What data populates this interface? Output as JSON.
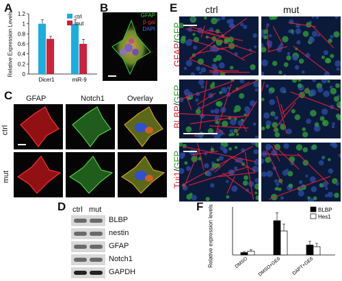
{
  "panelA": {
    "letter": "A",
    "ylabel": "Relative Expression Levels",
    "legend": [
      "ctrl",
      "mut"
    ]
  },
  "panelB": {
    "letter": "B",
    "legend": [
      "GFAP",
      "β-gal",
      "DAPI"
    ]
  },
  "panelC": {
    "letter": "C",
    "columns": [
      "GFAP",
      "Notch1",
      "Overlay"
    ],
    "rows": [
      "ctrl",
      "mut"
    ]
  },
  "panelD": {
    "letter": "D",
    "columns": [
      "ctrl",
      "mut"
    ],
    "bands": [
      "BLBP",
      "nestin",
      "GFAP",
      "Notch1",
      "GAPDH"
    ]
  },
  "panelE": {
    "letter": "E",
    "columns": [
      "ctrl",
      "mut"
    ],
    "rows": [
      {
        "marker": "GFAP",
        "sep": "/",
        "reporter": "GFP"
      },
      {
        "marker": "BLBP",
        "sep": "/",
        "reporter": "GFP"
      },
      {
        "marker": "Tuj1",
        "sep": "/",
        "reporter": "GFP"
      }
    ]
  },
  "panelF": {
    "letter": "F",
    "ylabel": "Relative expression levels",
    "legend": [
      "BLBP",
      "Hes1"
    ]
  },
  "colors": {
    "ctrl_bar": "#1aaee0",
    "mut_bar": "#d0203a",
    "blbp_bar": "#000000",
    "hes1_bar": "#ffffff",
    "gfp_green": "#22a020",
    "marker_red": "#d8202a"
  },
  "chart_data": [
    {
      "type": "bar",
      "categories": [
        "Dicer1",
        "miR-9"
      ],
      "series": [
        {
          "name": "ctrl",
          "values": [
            1.0,
            1.0
          ]
        },
        {
          "name": "mut",
          "values": [
            0.7,
            0.6
          ]
        }
      ],
      "errors": [
        {
          "name": "ctrl",
          "values": [
            0.08,
            0.08
          ]
        },
        {
          "name": "mut",
          "values": [
            0.05,
            0.09
          ]
        }
      ],
      "yticks": [
        "0",
        "0.2",
        "0.4",
        "0.6",
        "0.8",
        "1",
        "1.2"
      ],
      "ylim": [
        0,
        1.2
      ],
      "ylabel": "Relative Expression Levels",
      "legend": "top-right"
    },
    {
      "type": "bar",
      "categories": [
        "DMSO",
        "DMSO+GE6",
        "DAPT+GE6"
      ],
      "series": [
        {
          "name": "BLBP",
          "values": [
            0.7,
            10.0,
            2.9
          ]
        },
        {
          "name": "Hes1",
          "values": [
            1.1,
            7.0,
            2.4
          ]
        }
      ],
      "errors": [
        {
          "name": "BLBP",
          "values": [
            0.3,
            2.3,
            1.1
          ]
        },
        {
          "name": "Hes1",
          "values": [
            0.4,
            2.0,
            1.0
          ]
        }
      ],
      "ylim": [
        0,
        14
      ],
      "ylabel": "Relative expression levels",
      "legend": "top-right"
    }
  ]
}
